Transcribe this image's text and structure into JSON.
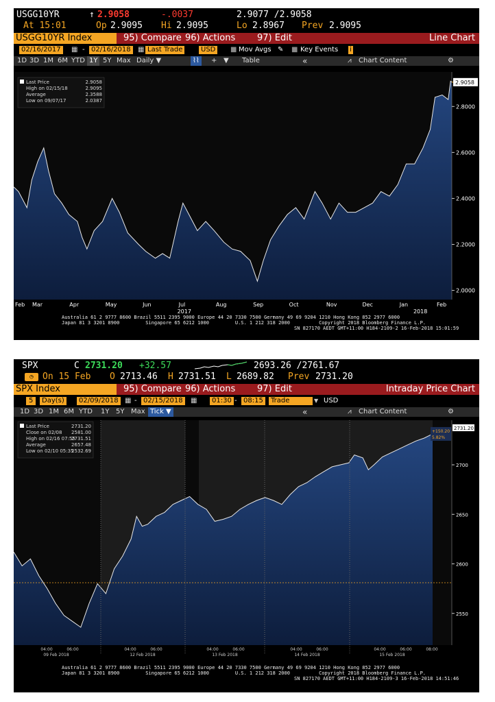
{
  "panel1": {
    "row1": {
      "ticker": "USGG10YR",
      "arrow": "↑",
      "last": "2.9058",
      "change": "-.0037",
      "bid_ask": "2.9077 /2.9058"
    },
    "row2": {
      "at": "At 15:01",
      "op_label": "Op",
      "op": "2.9095",
      "hi_label": "Hi",
      "hi": "2.9095",
      "lo_label": "Lo",
      "lo": "2.8967",
      "prev_label": "Prev",
      "prev": "2.9095"
    },
    "bar3": {
      "ticker_tab": "USGG10YR Index",
      "compare": "95) Compare",
      "actions": "96) Actions",
      "edit": "97) Edit",
      "right": "Line Chart"
    },
    "bar4": {
      "start": "02/16/2017",
      "dash": "-",
      "end": "02/16/2018",
      "field": "Last Trade",
      "currency": "USD",
      "mov_avgs": "Mov Avgs",
      "key_events": "Key Events"
    },
    "bar5": {
      "items": [
        "1D",
        "3D",
        "1M",
        "6M",
        "YTD",
        "1Y",
        "5Y",
        "Max",
        "Daily ▼"
      ],
      "table": "Table",
      "chart_content": "Chart Content",
      "back": "«"
    },
    "legend": [
      {
        "label": "Last Price",
        "value": "2.9058"
      },
      {
        "label": "High on 02/15/18",
        "value": "2.9095"
      },
      {
        "label": "Average",
        "value": "2.3588"
      },
      {
        "label": "Low on 09/07/17",
        "value": "2.0387"
      }
    ],
    "last_badge": "2.9058",
    "footer_line1": "Australia 61 2 9777 8600 Brazil 5511 2395 9000 Europe 44 20 7330 7500 Germany 49 69 9204 1210 Hong Kong 852 2977 6000",
    "footer_line2": "Japan 81 3 3201 8900         Singapore 65 6212 1000         U.S. 1 212 318 2000          Copyright 2018 Bloomberg Finance L.P.",
    "footer_line3": "SN 827170 AEDT GMT+11:00 H184-2109-2 16-Feb-2018 15:01:59"
  },
  "panel2": {
    "row1": {
      "ticker": "SPX",
      "c_label": "C",
      "last": "2731.20",
      "change": "+32.57",
      "range": "2693.26 /2761.67"
    },
    "row2": {
      "on": "On 15 Feb",
      "o_label": "O",
      "o": "2713.46",
      "h_label": "H",
      "h": "2731.51",
      "l_label": "L",
      "l": "2689.82",
      "prev_label": "Prev",
      "prev": "2731.20"
    },
    "bar3": {
      "ticker_tab": "SPX Index",
      "compare": "95) Compare",
      "actions": "96) Actions",
      "edit": "97) Edit",
      "right": "Intraday Price Chart"
    },
    "bar4": {
      "days": "5",
      "days_label": "Day(s)",
      "start": "02/09/2018",
      "dash": "-",
      "end": "02/15/2018",
      "t1": "01:30",
      "t_dash": "-",
      "t2": "08:15",
      "field": "Trade",
      "currency": "USD"
    },
    "bar5": {
      "items": [
        "1D",
        "3D",
        "1M",
        "6M",
        "YTD",
        "1Y",
        "5Y",
        "Max",
        "Tick ▼"
      ],
      "chart_content": "Chart Content",
      "back": "«"
    },
    "legend": [
      {
        "label": "Last Price",
        "value": "2731.20"
      },
      {
        "label": "Close on 02/08",
        "value": "2581.00"
      },
      {
        "label": "High on 02/16 07:55",
        "value": "2731.51"
      },
      {
        "label": "Average",
        "value": "2657.48"
      },
      {
        "label": "Low on 02/10 05:35",
        "value": "2532.69"
      }
    ],
    "last_badge": "2731.20",
    "change_badge_1": "+150.20",
    "change_badge_2": "5.82%",
    "footer_line1": "Australia 61 2 9777 8600 Brazil 5511 2395 9000 Europe 44 20 7330 7500 Germany 49 69 9204 1210 Hong Kong 852 2977 6000",
    "footer_line2": "Japan 81 3 3201 8900         Singapore 65 6212 1000         U.S. 1 212 318 2000          Copyright 2018 Bloomberg Finance L.P.",
    "footer_line3": "SN 827170 AEDT GMT+11:00 H184-2109-3 16-Feb-2018 14:51:46"
  },
  "colors": {
    "orange": "#f5a623",
    "red_bar": "#9a1b1e",
    "area": "#16305c",
    "line": "#e8e8e8",
    "up": "#3ddc5a",
    "down": "#ff3b30"
  },
  "chart_data": [
    {
      "type": "area",
      "title": "",
      "series": [
        {
          "values": [
            [
              "2017-02-16",
              2.45
            ],
            [
              "2017-02-20",
              2.43
            ],
            [
              "2017-02-27",
              2.36
            ],
            [
              "2017-03-03",
              2.48
            ],
            [
              "2017-03-08",
              2.56
            ],
            [
              "2017-03-13",
              2.62
            ],
            [
              "2017-03-17",
              2.52
            ],
            [
              "2017-03-22",
              2.42
            ],
            [
              "2017-03-28",
              2.38
            ],
            [
              "2017-04-03",
              2.33
            ],
            [
              "2017-04-10",
              2.3
            ],
            [
              "2017-04-14",
              2.23
            ],
            [
              "2017-04-18",
              2.18
            ],
            [
              "2017-04-24",
              2.26
            ],
            [
              "2017-05-01",
              2.3
            ],
            [
              "2017-05-09",
              2.4
            ],
            [
              "2017-05-15",
              2.34
            ],
            [
              "2017-05-22",
              2.25
            ],
            [
              "2017-05-31",
              2.2
            ],
            [
              "2017-06-06",
              2.17
            ],
            [
              "2017-06-14",
              2.14
            ],
            [
              "2017-06-20",
              2.16
            ],
            [
              "2017-06-26",
              2.14
            ],
            [
              "2017-07-03",
              2.3
            ],
            [
              "2017-07-07",
              2.38
            ],
            [
              "2017-07-12",
              2.33
            ],
            [
              "2017-07-19",
              2.26
            ],
            [
              "2017-07-26",
              2.3
            ],
            [
              "2017-08-02",
              2.26
            ],
            [
              "2017-08-10",
              2.21
            ],
            [
              "2017-08-17",
              2.18
            ],
            [
              "2017-08-24",
              2.17
            ],
            [
              "2017-09-01",
              2.13
            ],
            [
              "2017-09-07",
              2.04
            ],
            [
              "2017-09-12",
              2.13
            ],
            [
              "2017-09-18",
              2.22
            ],
            [
              "2017-09-25",
              2.28
            ],
            [
              "2017-10-02",
              2.33
            ],
            [
              "2017-10-09",
              2.36
            ],
            [
              "2017-10-16",
              2.31
            ],
            [
              "2017-10-25",
              2.43
            ],
            [
              "2017-10-31",
              2.38
            ],
            [
              "2017-11-07",
              2.31
            ],
            [
              "2017-11-14",
              2.38
            ],
            [
              "2017-11-21",
              2.34
            ],
            [
              "2017-11-28",
              2.34
            ],
            [
              "2017-12-05",
              2.36
            ],
            [
              "2017-12-12",
              2.38
            ],
            [
              "2017-12-19",
              2.43
            ],
            [
              "2017-12-26",
              2.41
            ],
            [
              "2018-01-02",
              2.46
            ],
            [
              "2018-01-09",
              2.55
            ],
            [
              "2018-01-16",
              2.55
            ],
            [
              "2018-01-23",
              2.62
            ],
            [
              "2018-01-29",
              2.7
            ],
            [
              "2018-02-02",
              2.84
            ],
            [
              "2018-02-08",
              2.85
            ],
            [
              "2018-02-13",
              2.83
            ],
            [
              "2018-02-15",
              2.91
            ],
            [
              "2018-02-16",
              2.9058
            ]
          ]
        }
      ],
      "x_tick_labels": [
        "Feb",
        "Mar",
        "Apr",
        "May",
        "Jun",
        "Jul",
        "Aug",
        "Sep",
        "Oct",
        "Nov",
        "Dec",
        "Jan",
        "Feb"
      ],
      "year_labels": [
        "2017",
        "2018"
      ],
      "y_ticks": [
        "2.0000",
        "2.2000",
        "2.4000",
        "2.6000",
        "2.8000"
      ],
      "ylim": [
        1.96,
        2.95
      ]
    },
    {
      "type": "area",
      "title": "",
      "series": [
        {
          "name": "SPX",
          "values": [
            [
              0,
              2612
            ],
            [
              3,
              2598
            ],
            [
              6,
              2605
            ],
            [
              9,
              2588
            ],
            [
              12,
              2575
            ],
            [
              15,
              2560
            ],
            [
              18,
              2548
            ],
            [
              21,
              2542
            ],
            [
              24,
              2536
            ],
            [
              27,
              2560
            ],
            [
              30,
              2580
            ],
            [
              33,
              2570
            ],
            [
              36,
              2595
            ],
            [
              39,
              2608
            ],
            [
              42,
              2625
            ],
            [
              44,
              2648
            ],
            [
              46,
              2638
            ],
            [
              48,
              2640
            ],
            [
              51,
              2648
            ],
            [
              54,
              2652
            ],
            [
              57,
              2660
            ],
            [
              60,
              2664
            ],
            [
              63,
              2668
            ],
            [
              66,
              2660
            ],
            [
              69,
              2655
            ],
            [
              72,
              2643
            ],
            [
              75,
              2645
            ],
            [
              78,
              2648
            ],
            [
              81,
              2655
            ],
            [
              84,
              2660
            ],
            [
              87,
              2664
            ],
            [
              90,
              2667
            ],
            [
              93,
              2664
            ],
            [
              96,
              2660
            ],
            [
              99,
              2670
            ],
            [
              102,
              2678
            ],
            [
              105,
              2682
            ],
            [
              108,
              2688
            ],
            [
              111,
              2693
            ],
            [
              114,
              2698
            ],
            [
              117,
              2700
            ],
            [
              120,
              2702
            ],
            [
              122,
              2710
            ],
            [
              125,
              2707
            ],
            [
              127,
              2695
            ],
            [
              129,
              2700
            ],
            [
              132,
              2708
            ],
            [
              135,
              2712
            ],
            [
              138,
              2716
            ],
            [
              141,
              2720
            ],
            [
              144,
              2724
            ],
            [
              147,
              2727
            ],
            [
              150,
              2731.2
            ]
          ]
        }
      ],
      "x_tick_labels": [
        "04:00",
        "06:00",
        "04:00",
        "06:00",
        "04:00",
        "06:00",
        "04:00",
        "06:00",
        "04:00",
        "06:00",
        "08:00"
      ],
      "day_labels": [
        "09 Feb 2018",
        "12 Feb 2018",
        "13 Feb 2018",
        "14 Feb 2018",
        "15 Feb 2018"
      ],
      "y_ticks": [
        "2550",
        "2600",
        "2650",
        "2700"
      ],
      "reference_line": 2581.0,
      "ylim": [
        2518,
        2745
      ]
    }
  ]
}
